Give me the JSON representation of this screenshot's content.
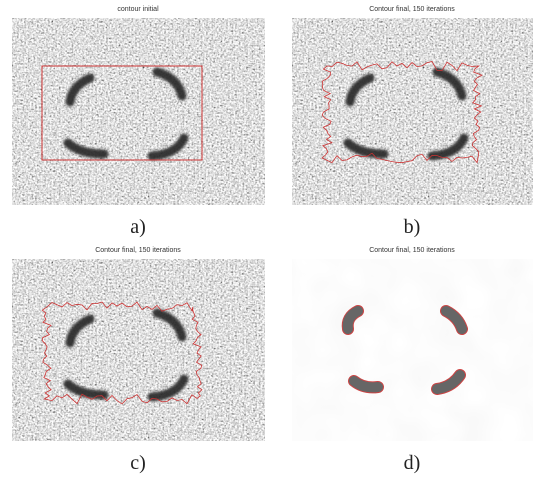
{
  "panels": [
    {
      "title": "contour initial",
      "caption": "a)"
    },
    {
      "title": "Contour final, 150 iterations",
      "caption": "b)"
    },
    {
      "title": "Contour final, 150 iterations",
      "caption": "c)"
    },
    {
      "title": "Contour final, 150 iterations",
      "caption": "d)"
    }
  ]
}
